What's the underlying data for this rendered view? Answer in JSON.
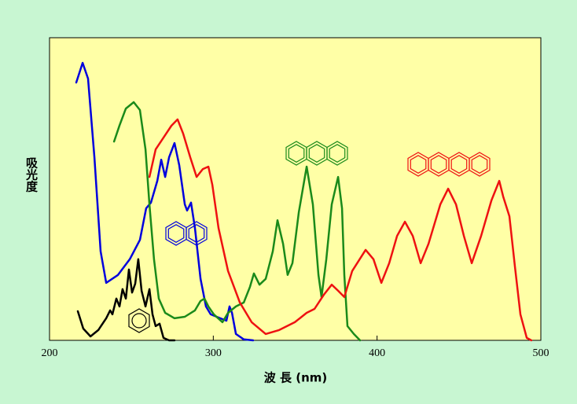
{
  "chart_data": {
    "type": "line",
    "y_label": "吸光度",
    "x_label": "波 長 (nm)",
    "xlim": [
      200,
      500
    ],
    "ylim": [
      0,
      100
    ],
    "xticks": [
      200,
      300,
      400,
      500
    ],
    "series": [
      {
        "color": "#000000",
        "x": [
          217.3,
          220.6,
          225.0,
          229.8,
          234.6,
          237.0,
          238.4,
          240.8,
          242.7,
          244.6,
          246.6,
          248.5,
          250.4,
          252.3,
          254.2,
          256.2,
          258.6,
          261.0,
          262.9,
          264.8,
          267.2,
          269.6,
          273.0,
          276.3
        ],
        "values": [
          9.6,
          3.9,
          1.3,
          3.4,
          7.3,
          9.9,
          8.6,
          13.8,
          11.2,
          16.9,
          13.8,
          23.4,
          15.8,
          18.7,
          26.8,
          16.4,
          11.2,
          16.9,
          8.6,
          4.7,
          5.5,
          0.8,
          0,
          0
        ]
      },
      {
        "color": "#0000dd",
        "x": [
          216.3,
          220.2,
          223.5,
          227.4,
          231.2,
          234.6,
          241.8,
          249.0,
          255.2,
          259.0,
          261.9,
          265.8,
          268.2,
          270.6,
          273.0,
          276.3,
          279.2,
          282.6,
          284.0,
          286.4,
          288.8,
          292.2,
          295.5,
          298.4,
          304.2,
          308.0,
          309.9,
          311.4,
          313.8,
          318.6,
          324.3
        ],
        "values": [
          85.2,
          91.7,
          86.5,
          60.5,
          29.4,
          19.0,
          21.6,
          26.8,
          33.2,
          43.6,
          45.5,
          52.7,
          59.7,
          54.0,
          60.5,
          65.2,
          57.9,
          44.9,
          42.9,
          45.5,
          37.1,
          20.3,
          11.2,
          8.6,
          7.3,
          6.5,
          11.2,
          9.1,
          2.1,
          0.3,
          0
        ]
      },
      {
        "color": "#1a8a1a",
        "x": [
          239.4,
          242.7,
          246.6,
          251.4,
          255.2,
          258.6,
          261.0,
          263.8,
          266.7,
          270.6,
          276.3,
          282.6,
          288.8,
          292.2,
          294.6,
          297.0,
          300.3,
          305.6,
          309.0,
          313.8,
          318.6,
          322.4,
          324.8,
          328.2,
          332.0,
          336.3,
          339.2,
          342.6,
          345.4,
          348.3,
          352.2,
          357.0,
          360.8,
          364.2,
          366.1,
          369.0,
          372.3,
          376.2,
          378.6,
          380.0,
          381.9,
          385.8,
          389.6
        ],
        "values": [
          65.7,
          71.0,
          76.6,
          78.7,
          76.1,
          63.1,
          44.9,
          26.8,
          13.8,
          9.1,
          7.3,
          7.8,
          9.9,
          13.0,
          13.8,
          11.2,
          8.6,
          6.0,
          9.1,
          11.2,
          12.5,
          17.7,
          22.1,
          18.4,
          20.3,
          29.4,
          39.7,
          31.9,
          21.6,
          25.5,
          42.3,
          57.4,
          44.9,
          21.6,
          14.3,
          26.8,
          44.9,
          54.0,
          43.6,
          21.6,
          4.7,
          2.1,
          0
        ]
      },
      {
        "color": "#ee1111",
        "x": [
          261.0,
          264.8,
          269.6,
          274.4,
          278.2,
          281.6,
          285.9,
          289.8,
          293.6,
          297.0,
          299.4,
          303.2,
          309.0,
          316.2,
          323.4,
          332.0,
          340.2,
          349.8,
          357.0,
          361.8,
          367.5,
          372.3,
          376.2,
          380.0,
          384.8,
          393.0,
          397.8,
          402.6,
          407.4,
          412.2,
          417.0,
          421.8,
          426.6,
          431.4,
          438.6,
          443.4,
          448.2,
          453.0,
          457.8,
          463.5,
          469.8,
          474.6,
          477.0,
          480.8,
          484.2,
          487.5,
          491.4,
          494.2
        ],
        "values": [
          54.0,
          63.1,
          67.0,
          70.9,
          73.0,
          68.3,
          60.5,
          54.0,
          56.6,
          57.4,
          51.4,
          37.1,
          22.9,
          12.5,
          6.0,
          2.1,
          3.4,
          6.0,
          9.1,
          10.4,
          15.1,
          18.4,
          16.4,
          14.3,
          22.9,
          29.9,
          26.8,
          19.0,
          25.5,
          34.5,
          39.2,
          34.5,
          25.5,
          31.9,
          44.9,
          50.1,
          44.9,
          34.5,
          25.5,
          34.5,
          46.2,
          52.7,
          47.5,
          41.0,
          24.2,
          8.6,
          0.8,
          0
        ]
      }
    ]
  }
}
